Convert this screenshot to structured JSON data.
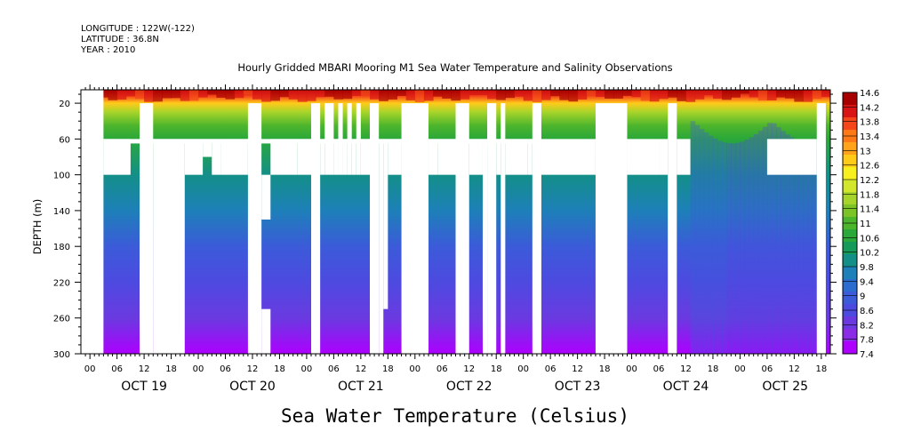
{
  "header": {
    "longitude": "LONGITUDE : 122W(-122)",
    "latitude": "LATITUDE : 36.8N",
    "year": "YEAR : 2010"
  },
  "footer_label": "Sea Water Temperature (Celsius)",
  "chart_data": {
    "type": "heatmap",
    "title": "Hourly Gridded MBARI Mooring M1 Sea Water Temperature and Salinity Observations",
    "xlabel": "",
    "ylabel": "DEPTH (m)",
    "x_range_hours": [
      -2,
      164
    ],
    "x_hour_ticks": [
      0,
      6,
      12,
      18,
      24,
      30,
      36,
      42,
      48,
      54,
      60,
      66,
      72,
      78,
      84,
      90,
      96,
      102,
      108,
      114,
      120,
      126,
      132,
      138,
      144,
      150,
      156,
      162
    ],
    "x_tick_labels": [
      "00",
      "06",
      "12",
      "18",
      "00",
      "06",
      "12",
      "18",
      "00",
      "06",
      "12",
      "18",
      "00",
      "06",
      "12",
      "18",
      "00",
      "06",
      "12",
      "18",
      "00",
      "06",
      "12",
      "18",
      "00",
      "06",
      "12",
      "18"
    ],
    "day_labels": [
      {
        "label": "OCT 19",
        "hour": 12
      },
      {
        "label": "OCT 20",
        "hour": 36
      },
      {
        "label": "OCT 21",
        "hour": 60
      },
      {
        "label": "OCT 22",
        "hour": 84
      },
      {
        "label": "OCT 23",
        "hour": 108
      },
      {
        "label": "OCT 24",
        "hour": 132
      },
      {
        "label": "OCT 25",
        "hour": 154
      }
    ],
    "y_ticks": [
      20,
      60,
      100,
      140,
      180,
      220,
      260,
      300
    ],
    "y_range_m": [
      300,
      5
    ],
    "colorbar": {
      "min": 7.4,
      "max": 14.6,
      "labels": [
        "14.6",
        "14.2",
        "13.8",
        "13.4",
        "13",
        "12.6",
        "12.2",
        "11.8",
        "11.4",
        "11",
        "10.6",
        "10.2",
        "9.8",
        "9.4",
        "9",
        "8.6",
        "8.2",
        "7.8",
        "7.4"
      ]
    },
    "palette": [
      "#ad00ff",
      "#8a2be6",
      "#6a3ae0",
      "#4d4ae0",
      "#3b5bd9",
      "#2b6ccf",
      "#1d80b8",
      "#138f88",
      "#169a5a",
      "#2aa83a",
      "#4db52c",
      "#7cc426",
      "#a6d42a",
      "#d2e62c",
      "#f7f01e",
      "#ffcb1a",
      "#ffa31a",
      "#ff7a17",
      "#f4461a",
      "#d91414",
      "#a80000"
    ],
    "profile": [
      {
        "depth": 5,
        "value": 14.5
      },
      {
        "depth": 12,
        "value": 13.8
      },
      {
        "depth": 20,
        "value": 12.8
      },
      {
        "depth": 30,
        "value": 11.8
      },
      {
        "depth": 45,
        "value": 11.0
      },
      {
        "depth": 60,
        "value": 10.5
      },
      {
        "depth": 100,
        "value": 10.0
      },
      {
        "depth": 140,
        "value": 9.7
      },
      {
        "depth": 180,
        "value": 9.1
      },
      {
        "depth": 220,
        "value": 8.6
      },
      {
        "depth": 260,
        "value": 8.2
      },
      {
        "depth": 300,
        "value": 7.6
      }
    ],
    "missing_regions": [
      {
        "x0": -2,
        "x1": 3,
        "y0": 5,
        "y1": 300
      },
      {
        "x0": 3,
        "x1": 9,
        "y0": 60,
        "y1": 100
      },
      {
        "x0": 3,
        "x1": 100,
        "y0": 60,
        "y1": 65
      },
      {
        "x0": 11,
        "x1": 14,
        "y0": 20,
        "y1": 300
      },
      {
        "x0": 14,
        "x1": 21,
        "y0": 60,
        "y1": 300
      },
      {
        "x0": 21,
        "x1": 25,
        "y0": 60,
        "y1": 100
      },
      {
        "x0": 25,
        "x1": 27,
        "y0": 60,
        "y1": 80
      },
      {
        "x0": 27,
        "x1": 29,
        "y0": 60,
        "y1": 100
      },
      {
        "x0": 29,
        "x1": 35,
        "y0": 60,
        "y1": 100
      },
      {
        "x0": 35,
        "x1": 38,
        "y0": 20,
        "y1": 300
      },
      {
        "x0": 38,
        "x1": 40,
        "y0": 100,
        "y1": 150
      },
      {
        "x0": 38,
        "x1": 40,
        "y0": 250,
        "y1": 300
      },
      {
        "x0": 40,
        "x1": 46,
        "y0": 60,
        "y1": 100
      },
      {
        "x0": 46,
        "x1": 49,
        "y0": 60,
        "y1": 100
      },
      {
        "x0": 49,
        "x1": 51,
        "y0": 20,
        "y1": 300
      },
      {
        "x0": 51,
        "x1": 52,
        "y0": 60,
        "y1": 100
      },
      {
        "x0": 52,
        "x1": 54,
        "y0": 20,
        "y1": 100
      },
      {
        "x0": 54,
        "x1": 55,
        "y0": 60,
        "y1": 100
      },
      {
        "x0": 55,
        "x1": 56,
        "y0": 20,
        "y1": 100
      },
      {
        "x0": 56,
        "x1": 57,
        "y0": 60,
        "y1": 100
      },
      {
        "x0": 57,
        "x1": 58,
        "y0": 20,
        "y1": 100
      },
      {
        "x0": 58,
        "x1": 59,
        "y0": 60,
        "y1": 100
      },
      {
        "x0": 59,
        "x1": 60,
        "y0": 20,
        "y1": 100
      },
      {
        "x0": 60,
        "x1": 62,
        "y0": 60,
        "y1": 100
      },
      {
        "x0": 62,
        "x1": 64,
        "y0": 20,
        "y1": 300
      },
      {
        "x0": 64,
        "x1": 65,
        "y0": 60,
        "y1": 300
      },
      {
        "x0": 65,
        "x1": 66,
        "y0": 60,
        "y1": 250
      },
      {
        "x0": 66,
        "x1": 69,
        "y0": 60,
        "y1": 100
      },
      {
        "x0": 69,
        "x1": 75,
        "y0": 20,
        "y1": 300
      },
      {
        "x0": 75,
        "x1": 77,
        "y0": 60,
        "y1": 100
      },
      {
        "x0": 77,
        "x1": 81,
        "y0": 60,
        "y1": 100
      },
      {
        "x0": 81,
        "x1": 84,
        "y0": 20,
        "y1": 300
      },
      {
        "x0": 84,
        "x1": 87,
        "y0": 60,
        "y1": 100
      },
      {
        "x0": 87,
        "x1": 88,
        "y0": 60,
        "y1": 300
      },
      {
        "x0": 88,
        "x1": 90,
        "y0": 20,
        "y1": 300
      },
      {
        "x0": 90,
        "x1": 91,
        "y0": 60,
        "y1": 100
      },
      {
        "x0": 91,
        "x1": 92,
        "y0": 20,
        "y1": 300
      },
      {
        "x0": 92,
        "x1": 97,
        "y0": 60,
        "y1": 100
      },
      {
        "x0": 97,
        "x1": 98,
        "y0": 60,
        "y1": 100
      },
      {
        "x0": 98,
        "x1": 100,
        "y0": 20,
        "y1": 300
      },
      {
        "x0": 100,
        "x1": 112,
        "y0": 60,
        "y1": 100
      },
      {
        "x0": 112,
        "x1": 119,
        "y0": 20,
        "y1": 300
      },
      {
        "x0": 119,
        "x1": 126,
        "y0": 60,
        "y1": 100
      },
      {
        "x0": 126,
        "x1": 128,
        "y0": 60,
        "y1": 100
      },
      {
        "x0": 128,
        "x1": 130,
        "y0": 20,
        "y1": 300
      },
      {
        "x0": 130,
        "x1": 133,
        "y0": 60,
        "y1": 100
      },
      {
        "x0": 150,
        "x1": 161,
        "y0": 60,
        "y1": 100
      },
      {
        "x0": 161,
        "x1": 163,
        "y0": 20,
        "y1": 300
      }
    ]
  }
}
